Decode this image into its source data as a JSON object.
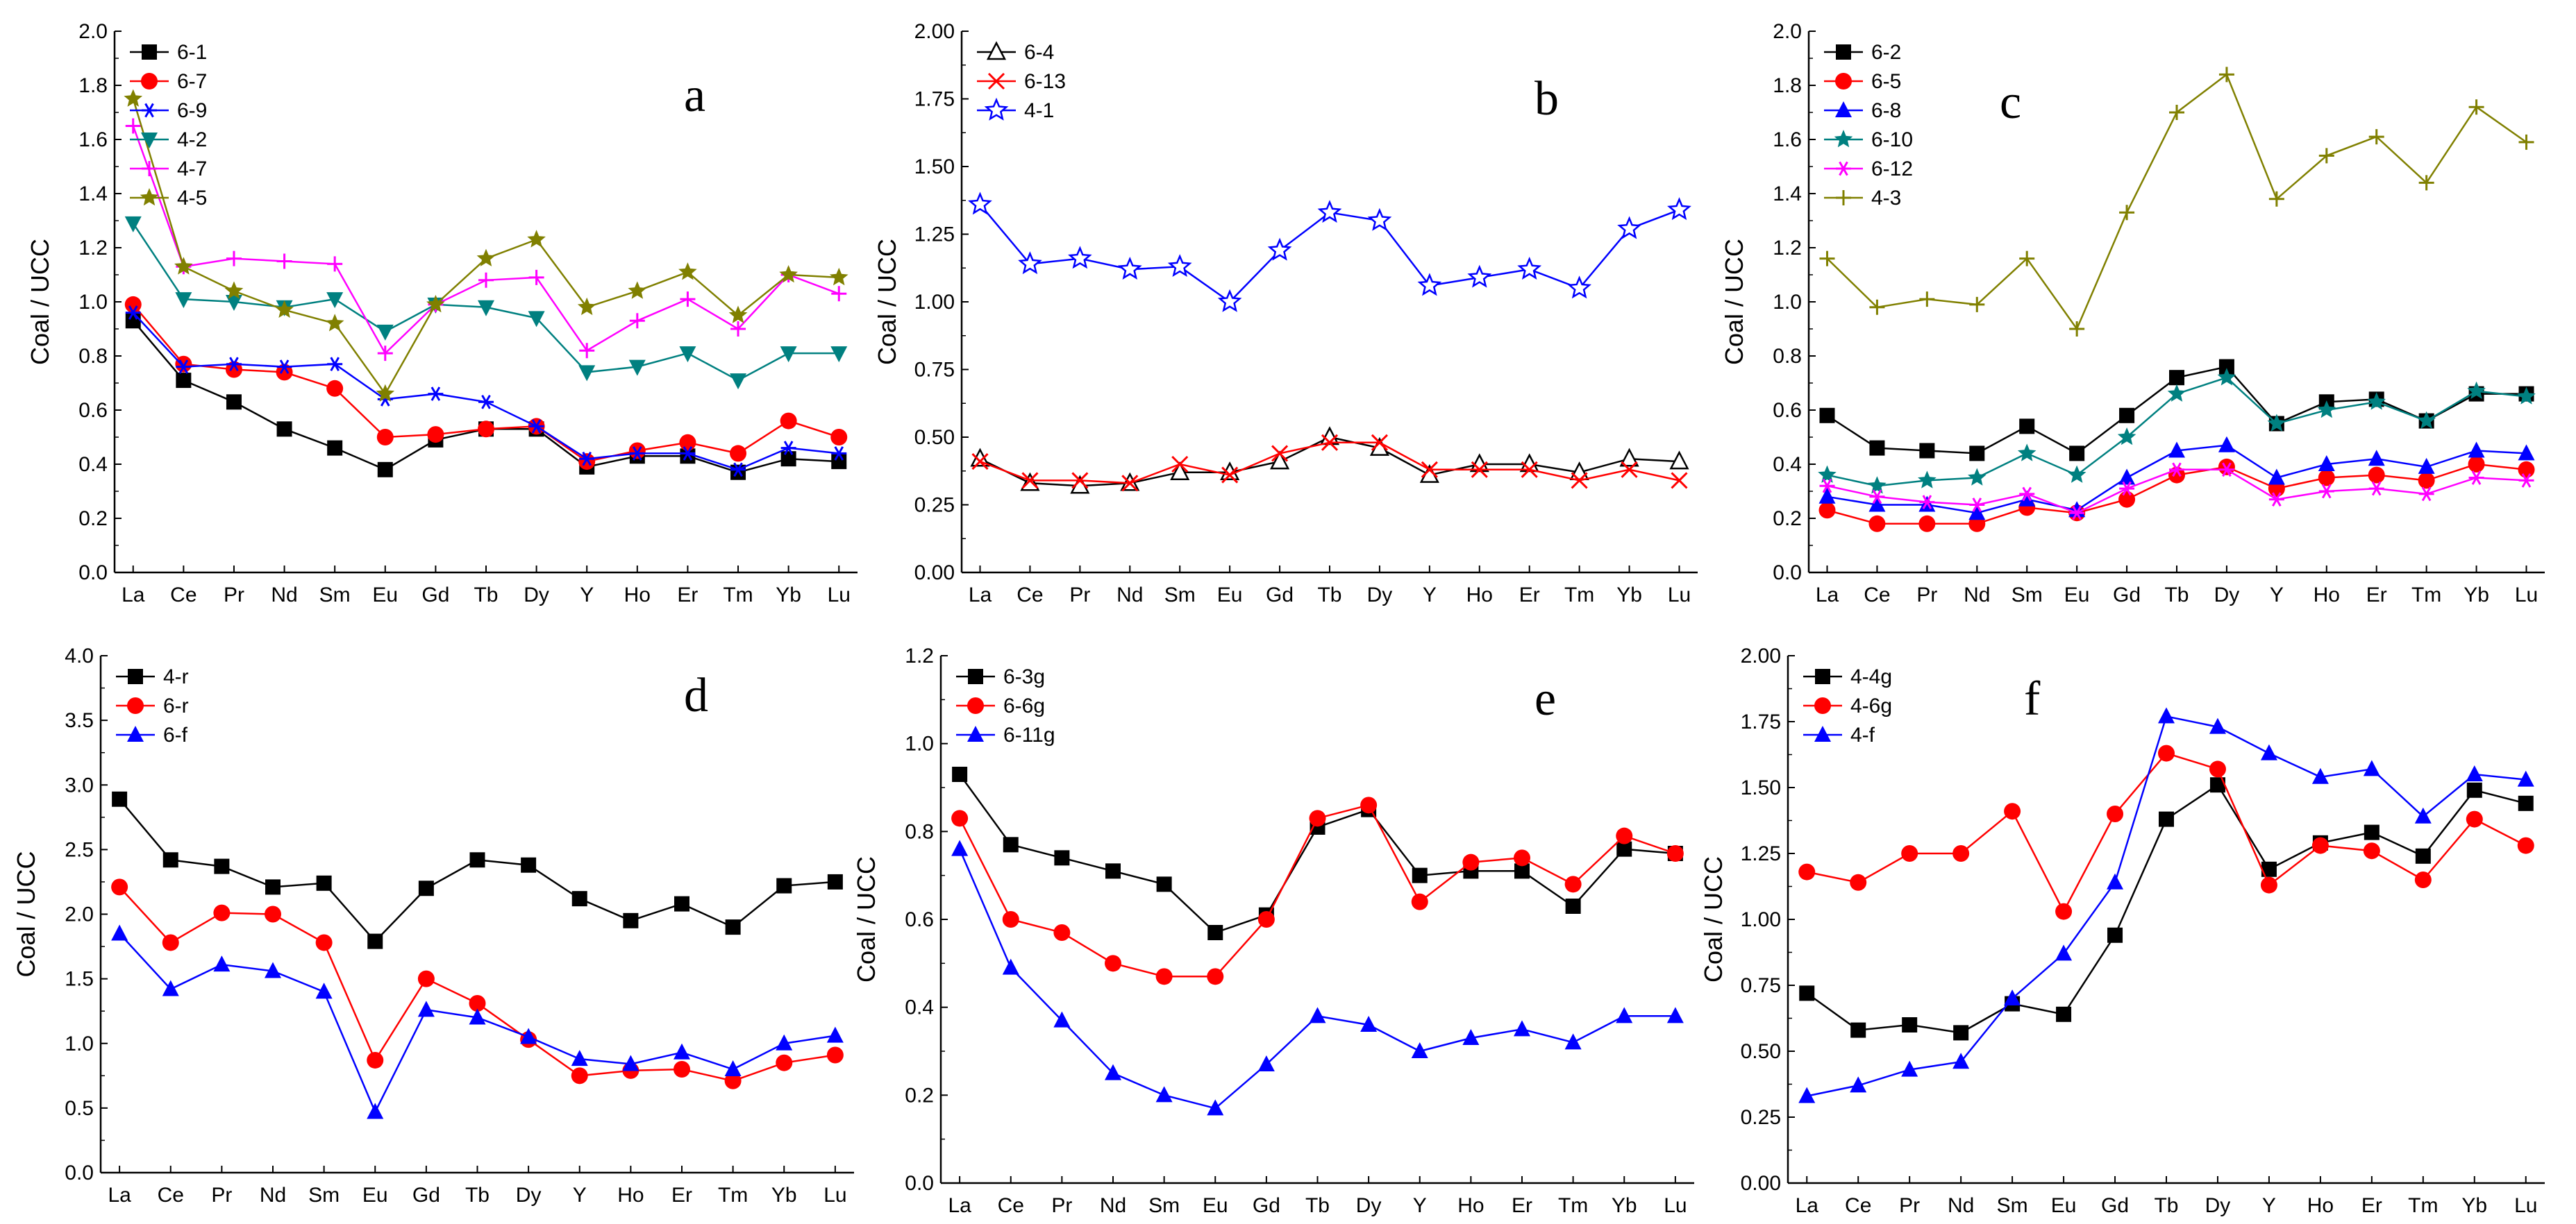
{
  "chart_data": [
    {
      "type": "line",
      "panel_letter": "a",
      "categories": [
        "La",
        "Ce",
        "Pr",
        "Nd",
        "Sm",
        "Eu",
        "Gd",
        "Tb",
        "Dy",
        "Y",
        "Ho",
        "Er",
        "Tm",
        "Yb",
        "Lu"
      ],
      "ylabel": "Coal / UCC",
      "ylim": [
        0,
        2.0
      ],
      "yticks": [
        "0.0",
        "0.2",
        "0.4",
        "0.6",
        "0.8",
        "1.0",
        "1.2",
        "1.4",
        "1.6",
        "1.8",
        "2.0"
      ],
      "legend_position": "top-left",
      "series": [
        {
          "name": "6-1",
          "color": "#000000",
          "marker": "square",
          "values": [
            0.93,
            0.71,
            0.63,
            0.53,
            0.46,
            0.38,
            0.49,
            0.53,
            0.53,
            0.39,
            0.43,
            0.43,
            0.37,
            0.42,
            0.41
          ]
        },
        {
          "name": "6-7",
          "color": "#ff0000",
          "marker": "circle",
          "values": [
            0.99,
            0.77,
            0.75,
            0.74,
            0.68,
            0.5,
            0.51,
            0.53,
            0.54,
            0.41,
            0.45,
            0.48,
            0.44,
            0.56,
            0.5
          ]
        },
        {
          "name": "6-9",
          "color": "#0000ff",
          "marker": "star6",
          "values": [
            0.96,
            0.76,
            0.77,
            0.76,
            0.77,
            0.64,
            0.66,
            0.63,
            0.54,
            0.42,
            0.44,
            0.44,
            0.38,
            0.46,
            0.44
          ]
        },
        {
          "name": "4-2",
          "color": "#008080",
          "marker": "triangle-down",
          "values": [
            1.29,
            1.01,
            1.0,
            0.98,
            1.01,
            0.89,
            0.99,
            0.98,
            0.94,
            0.74,
            0.76,
            0.81,
            0.71,
            0.81,
            0.81
          ]
        },
        {
          "name": "4-7",
          "color": "#ff00ff",
          "marker": "plus",
          "values": [
            1.65,
            1.13,
            1.16,
            1.15,
            1.14,
            0.81,
            0.99,
            1.08,
            1.09,
            0.82,
            0.93,
            1.01,
            0.9,
            1.1,
            1.03
          ]
        },
        {
          "name": "4-5",
          "color": "#808000",
          "marker": "star5",
          "values": [
            1.75,
            1.13,
            1.04,
            0.97,
            0.92,
            0.66,
            0.99,
            1.16,
            1.23,
            0.98,
            1.04,
            1.11,
            0.95,
            1.1,
            1.09
          ]
        }
      ]
    },
    {
      "type": "line",
      "panel_letter": "b",
      "categories": [
        "La",
        "Ce",
        "Pr",
        "Nd",
        "Sm",
        "Eu",
        "Gd",
        "Tb",
        "Dy",
        "Y",
        "Ho",
        "Er",
        "Tm",
        "Yb",
        "Lu"
      ],
      "ylabel": "Coal / UCC",
      "ylim": [
        0,
        2.0
      ],
      "yticks": [
        "0.00",
        "0.25",
        "0.50",
        "0.75",
        "1.00",
        "1.25",
        "1.50",
        "1.75",
        "2.00"
      ],
      "legend_position": "top-left",
      "series": [
        {
          "name": "6-4",
          "color": "#000000",
          "marker": "triangle-open",
          "values": [
            0.42,
            0.33,
            0.32,
            0.33,
            0.37,
            0.37,
            0.41,
            0.5,
            0.46,
            0.36,
            0.4,
            0.4,
            0.37,
            0.42,
            0.41
          ]
        },
        {
          "name": "6-13",
          "color": "#ff0000",
          "marker": "x",
          "values": [
            0.41,
            0.34,
            0.34,
            0.33,
            0.4,
            0.36,
            0.44,
            0.48,
            0.48,
            0.38,
            0.38,
            0.38,
            0.34,
            0.38,
            0.34
          ]
        },
        {
          "name": "4-1",
          "color": "#0000ff",
          "marker": "star5-open",
          "values": [
            1.36,
            1.14,
            1.16,
            1.12,
            1.13,
            1.0,
            1.19,
            1.33,
            1.3,
            1.06,
            1.09,
            1.12,
            1.05,
            1.27,
            1.34
          ]
        }
      ]
    },
    {
      "type": "line",
      "panel_letter": "c",
      "categories": [
        "La",
        "Ce",
        "Pr",
        "Nd",
        "Sm",
        "Eu",
        "Gd",
        "Tb",
        "Dy",
        "Y",
        "Ho",
        "Er",
        "Tm",
        "Yb",
        "Lu"
      ],
      "ylabel": "Coal / UCC",
      "ylim": [
        0,
        2.0
      ],
      "yticks": [
        "0.0",
        "0.2",
        "0.4",
        "0.6",
        "0.8",
        "1.0",
        "1.2",
        "1.4",
        "1.6",
        "1.8",
        "2.0"
      ],
      "legend_position": "top-left",
      "series": [
        {
          "name": "6-2",
          "color": "#000000",
          "marker": "square",
          "values": [
            0.58,
            0.46,
            0.45,
            0.44,
            0.54,
            0.44,
            0.58,
            0.72,
            0.76,
            0.55,
            0.63,
            0.64,
            0.56,
            0.66,
            0.66
          ]
        },
        {
          "name": "6-5",
          "color": "#ff0000",
          "marker": "circle",
          "values": [
            0.23,
            0.18,
            0.18,
            0.18,
            0.24,
            0.22,
            0.27,
            0.36,
            0.39,
            0.31,
            0.35,
            0.36,
            0.34,
            0.4,
            0.38
          ]
        },
        {
          "name": "6-8",
          "color": "#0000ff",
          "marker": "triangle",
          "values": [
            0.28,
            0.25,
            0.25,
            0.22,
            0.27,
            0.23,
            0.35,
            0.45,
            0.47,
            0.35,
            0.4,
            0.42,
            0.39,
            0.45,
            0.44
          ]
        },
        {
          "name": "6-10",
          "color": "#008080",
          "marker": "star5",
          "values": [
            0.36,
            0.32,
            0.34,
            0.35,
            0.44,
            0.36,
            0.5,
            0.66,
            0.72,
            0.55,
            0.6,
            0.63,
            0.56,
            0.67,
            0.65
          ]
        },
        {
          "name": "6-12",
          "color": "#ff00ff",
          "marker": "star6",
          "values": [
            0.32,
            0.28,
            0.26,
            0.25,
            0.29,
            0.22,
            0.31,
            0.38,
            0.38,
            0.27,
            0.3,
            0.31,
            0.29,
            0.35,
            0.34
          ]
        },
        {
          "name": "4-3",
          "color": "#808000",
          "marker": "plus",
          "values": [
            1.16,
            0.98,
            1.01,
            0.99,
            1.16,
            0.9,
            1.33,
            1.7,
            1.84,
            1.38,
            1.54,
            1.61,
            1.44,
            1.72,
            1.59
          ]
        }
      ]
    },
    {
      "type": "line",
      "panel_letter": "d",
      "categories": [
        "La",
        "Ce",
        "Pr",
        "Nd",
        "Sm",
        "Eu",
        "Gd",
        "Tb",
        "Dy",
        "Y",
        "Ho",
        "Er",
        "Tm",
        "Yb",
        "Lu"
      ],
      "ylabel": "Coal / UCC",
      "ylim": [
        0,
        4.0
      ],
      "yticks": [
        "0.0",
        "0.5",
        "1.0",
        "1.5",
        "2.0",
        "2.5",
        "3.0",
        "3.5",
        "4.0"
      ],
      "legend_position": "top-left",
      "series": [
        {
          "name": "4-r",
          "color": "#000000",
          "marker": "square",
          "values": [
            2.89,
            2.42,
            2.37,
            2.21,
            2.24,
            1.79,
            2.2,
            2.42,
            2.38,
            2.12,
            1.95,
            2.08,
            1.9,
            2.22,
            2.25
          ]
        },
        {
          "name": "6-r",
          "color": "#ff0000",
          "marker": "circle",
          "values": [
            2.21,
            1.78,
            2.01,
            2.0,
            1.78,
            0.87,
            1.5,
            1.31,
            1.03,
            0.75,
            0.79,
            0.8,
            0.71,
            0.85,
            0.91
          ]
        },
        {
          "name": "6-f",
          "color": "#0000ff",
          "marker": "triangle",
          "values": [
            1.85,
            1.42,
            1.61,
            1.56,
            1.4,
            0.47,
            1.26,
            1.2,
            1.05,
            0.88,
            0.84,
            0.93,
            0.8,
            1.0,
            1.06
          ]
        }
      ]
    },
    {
      "type": "line",
      "panel_letter": "e",
      "categories": [
        "La",
        "Ce",
        "Pr",
        "Nd",
        "Sm",
        "Eu",
        "Gd",
        "Tb",
        "Dy",
        "Y",
        "Ho",
        "Er",
        "Tm",
        "Yb",
        "Lu"
      ],
      "ylabel": "Coal / UCC",
      "ylim": [
        0,
        1.2
      ],
      "yticks": [
        "0.0",
        "0.2",
        "0.4",
        "0.6",
        "0.8",
        "1.0",
        "1.2"
      ],
      "legend_position": "top-left",
      "series": [
        {
          "name": "6-3g",
          "color": "#000000",
          "marker": "square",
          "values": [
            0.93,
            0.77,
            0.74,
            0.71,
            0.68,
            0.57,
            0.61,
            0.81,
            0.85,
            0.7,
            0.71,
            0.71,
            0.63,
            0.76,
            0.75
          ]
        },
        {
          "name": "6-6g",
          "color": "#ff0000",
          "marker": "circle",
          "values": [
            0.83,
            0.6,
            0.57,
            0.5,
            0.47,
            0.47,
            0.6,
            0.83,
            0.86,
            0.64,
            0.73,
            0.74,
            0.68,
            0.79,
            0.75
          ]
        },
        {
          "name": "6-11g",
          "color": "#0000ff",
          "marker": "triangle",
          "values": [
            0.76,
            0.49,
            0.37,
            0.25,
            0.2,
            0.17,
            0.27,
            0.38,
            0.36,
            0.3,
            0.33,
            0.35,
            0.32,
            0.38,
            0.38
          ]
        }
      ]
    },
    {
      "type": "line",
      "panel_letter": "f",
      "categories": [
        "La",
        "Ce",
        "Pr",
        "Nd",
        "Sm",
        "Eu",
        "Gd",
        "Tb",
        "Dy",
        "Y",
        "Ho",
        "Er",
        "Tm",
        "Yb",
        "Lu"
      ],
      "ylabel": "Coal / UCC",
      "ylim": [
        0,
        2.0
      ],
      "yticks": [
        "0.00",
        "0.25",
        "0.50",
        "0.75",
        "1.00",
        "1.25",
        "1.50",
        "1.75",
        "2.00"
      ],
      "legend_position": "top-left",
      "series": [
        {
          "name": "4-4g",
          "color": "#000000",
          "marker": "square",
          "values": [
            0.72,
            0.58,
            0.6,
            0.57,
            0.68,
            0.64,
            0.94,
            1.38,
            1.51,
            1.19,
            1.29,
            1.33,
            1.24,
            1.49,
            1.44
          ]
        },
        {
          "name": "4-6g",
          "color": "#ff0000",
          "marker": "circle",
          "values": [
            1.18,
            1.14,
            1.25,
            1.25,
            1.41,
            1.03,
            1.4,
            1.63,
            1.57,
            1.13,
            1.28,
            1.26,
            1.15,
            1.38,
            1.28
          ]
        },
        {
          "name": "4-f",
          "color": "#0000ff",
          "marker": "triangle",
          "values": [
            0.33,
            0.37,
            0.43,
            0.46,
            0.7,
            0.87,
            1.14,
            1.77,
            1.73,
            1.63,
            1.54,
            1.57,
            1.39,
            1.55,
            1.53
          ]
        }
      ]
    }
  ]
}
